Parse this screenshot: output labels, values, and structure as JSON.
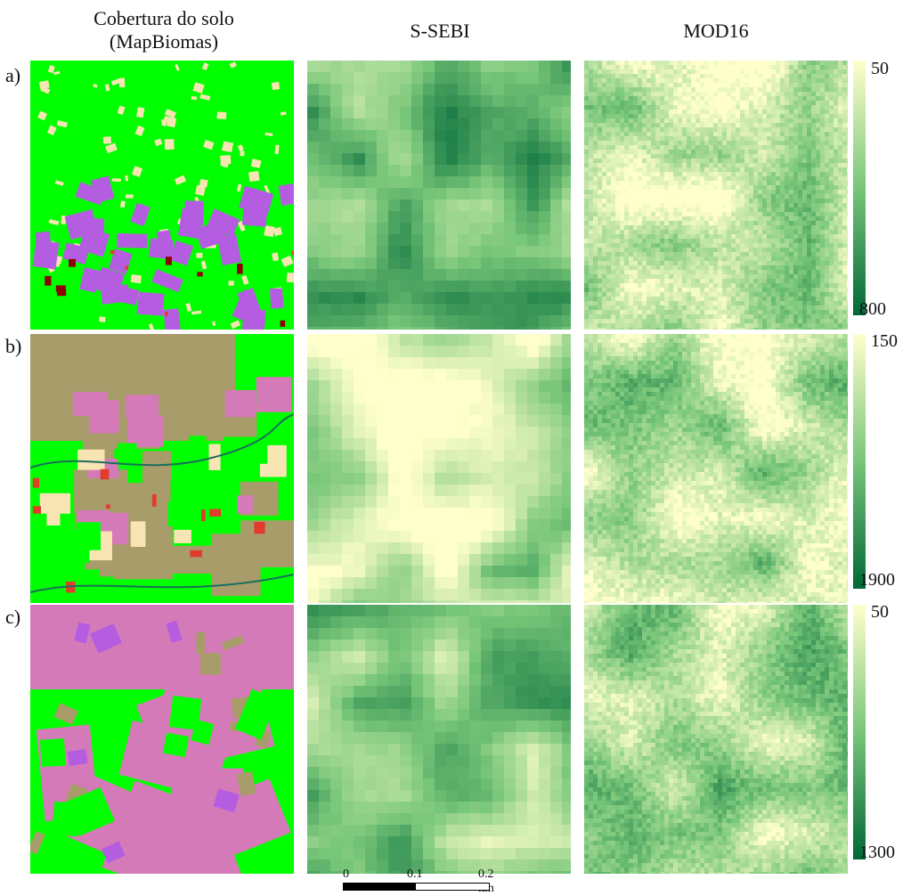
{
  "columns": {
    "land_cover_line1": "Cobertura do solo",
    "land_cover_line2": "(MapBiomas)",
    "ssebi": "S-SEBI",
    "mod16": "MOD16"
  },
  "rows": [
    {
      "label": "a)",
      "cbar_top": "50",
      "cbar_bottom": "800"
    },
    {
      "label": "b)",
      "cbar_top": "150",
      "cbar_bottom": "1900"
    },
    {
      "label": "c)",
      "cbar_top": "50",
      "cbar_bottom": "1300"
    }
  ],
  "scalebar": {
    "t0": "0",
    "t1": "0.1",
    "t2": "0.2 km"
  },
  "colors": {
    "forest_green": "#00ff00",
    "pasture_tan": "#a89c6a",
    "agriculture_pink": "#d57ab8",
    "agriculture_purple": "#b45de1",
    "mosaic_cream": "#f9e5b3",
    "urban_red": "#e23b2c",
    "dark_red": "#8b0000",
    "water_blue": "#0b3fbf",
    "ramp_low": "#ffffcc",
    "ramp_mid": "#78c679",
    "ramp_high": "#006837"
  }
}
